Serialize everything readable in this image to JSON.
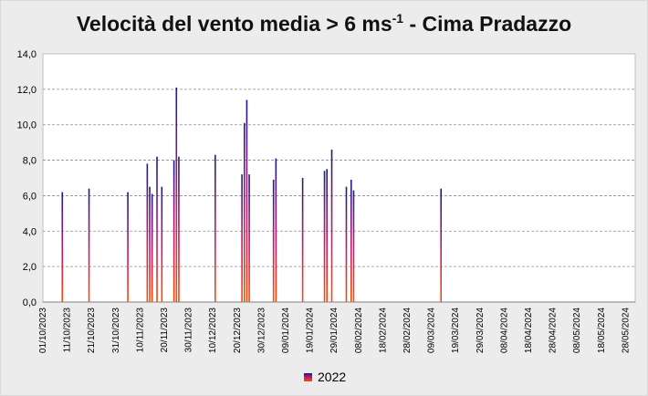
{
  "chart_data": {
    "type": "bar",
    "title_main": "Velocità del vento media > 6 ms",
    "title_sup": "-1",
    "title_rest": " - Cima Pradazzo",
    "xlabel": "",
    "ylabel": "",
    "ylim": [
      0,
      14
    ],
    "yticks": [
      "0,0",
      "2,0",
      "4,0",
      "6,0",
      "8,0",
      "10,0",
      "12,0",
      "14,0"
    ],
    "y_tick_values": [
      0,
      2,
      4,
      6,
      8,
      10,
      12,
      14
    ],
    "xlim": [
      "2023-10-01",
      "2024-06-01"
    ],
    "xticks": [
      {
        "date": "2023-10-01",
        "label": "01/10/2023"
      },
      {
        "date": "2023-10-11",
        "label": "11/10/2023"
      },
      {
        "date": "2023-10-21",
        "label": "21/10/2023"
      },
      {
        "date": "2023-10-31",
        "label": "31/10/2023"
      },
      {
        "date": "2023-11-10",
        "label": "10/11/2023"
      },
      {
        "date": "2023-11-20",
        "label": "20/11/2023"
      },
      {
        "date": "2023-11-30",
        "label": "30/11/2023"
      },
      {
        "date": "2023-12-10",
        "label": "10/12/2023"
      },
      {
        "date": "2023-12-20",
        "label": "20/12/2023"
      },
      {
        "date": "2023-12-30",
        "label": "30/12/2023"
      },
      {
        "date": "2024-01-09",
        "label": "09/01/2024"
      },
      {
        "date": "2024-01-19",
        "label": "19/01/2024"
      },
      {
        "date": "2024-01-29",
        "label": "29/01/2024"
      },
      {
        "date": "2024-02-08",
        "label": "08/02/2024"
      },
      {
        "date": "2024-02-18",
        "label": "18/02/2024"
      },
      {
        "date": "2024-02-28",
        "label": "28/02/2024"
      },
      {
        "date": "2024-03-09",
        "label": "09/03/2024"
      },
      {
        "date": "2024-03-19",
        "label": "19/03/2024"
      },
      {
        "date": "2024-03-29",
        "label": "29/03/2024"
      },
      {
        "date": "2024-04-08",
        "label": "08/04/2024"
      },
      {
        "date": "2024-04-18",
        "label": "18/04/2024"
      },
      {
        "date": "2024-04-28",
        "label": "28/04/2024"
      },
      {
        "date": "2024-05-08",
        "label": "08/05/2024"
      },
      {
        "date": "2024-05-18",
        "label": "18/05/2024"
      },
      {
        "date": "2024-05-28",
        "label": "28/05/2024"
      }
    ],
    "grid": true,
    "legend_position": "bottom-center",
    "series": [
      {
        "name": "2022",
        "colors": [
          "#1a1a8c",
          "#c8186e",
          "#ff4a00"
        ],
        "points": [
          {
            "x": "2023-10-09",
            "y": 6.2
          },
          {
            "x": "2023-10-20",
            "y": 6.4
          },
          {
            "x": "2023-11-05",
            "y": 6.2
          },
          {
            "x": "2023-11-13",
            "y": 7.8
          },
          {
            "x": "2023-11-14",
            "y": 6.5
          },
          {
            "x": "2023-11-15",
            "y": 6.1
          },
          {
            "x": "2023-11-17",
            "y": 8.2
          },
          {
            "x": "2023-11-19",
            "y": 6.5
          },
          {
            "x": "2023-11-24",
            "y": 8.0
          },
          {
            "x": "2023-11-25",
            "y": 12.1
          },
          {
            "x": "2023-11-26",
            "y": 8.2
          },
          {
            "x": "2023-12-11",
            "y": 8.3
          },
          {
            "x": "2023-12-22",
            "y": 7.2
          },
          {
            "x": "2023-12-23",
            "y": 10.1
          },
          {
            "x": "2023-12-24",
            "y": 11.4
          },
          {
            "x": "2023-12-25",
            "y": 7.2
          },
          {
            "x": "2024-01-04",
            "y": 6.9
          },
          {
            "x": "2024-01-05",
            "y": 8.1
          },
          {
            "x": "2024-01-16",
            "y": 7.0
          },
          {
            "x": "2024-01-25",
            "y": 7.4
          },
          {
            "x": "2024-01-26",
            "y": 7.5
          },
          {
            "x": "2024-01-28",
            "y": 8.6
          },
          {
            "x": "2024-02-03",
            "y": 6.5
          },
          {
            "x": "2024-02-05",
            "y": 6.9
          },
          {
            "x": "2024-02-06",
            "y": 6.3
          },
          {
            "x": "2024-03-13",
            "y": 6.4
          }
        ]
      }
    ]
  }
}
